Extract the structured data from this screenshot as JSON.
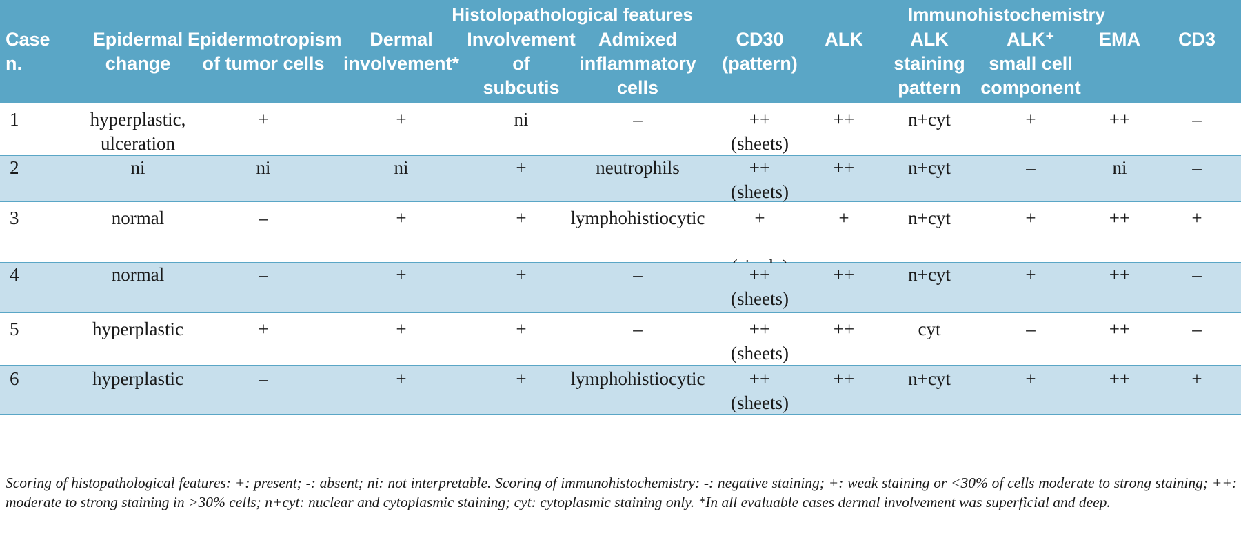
{
  "table": {
    "group_headers": {
      "histopathology": "Histolopathological features",
      "immunohistochemistry": "Immunohistochemistry"
    },
    "columns": [
      "Case\nn.",
      "Epidermal\nchange",
      "Epidermotropism\nof tumor cells",
      "Dermal\ninvolvement*",
      "Involvement of\nsubcutis",
      "Admixed\ninflammatory\ncells",
      "CD30\n(pattern)",
      "ALK",
      "ALK\nstaining\npattern",
      "ALK⁺\nsmall cell\ncomponent",
      "EMA",
      "CD3"
    ],
    "rows": [
      [
        "1",
        "hyperplastic,\nulceration",
        "+",
        "+",
        "ni",
        "–",
        "++\n(sheets)",
        "++",
        "n+cyt",
        "+",
        "++",
        "–"
      ],
      [
        "2",
        "ni",
        "ni",
        "ni",
        "+",
        "neutrophils",
        "++\n(sheets)",
        "++",
        "n+cyt",
        "–",
        "ni",
        "–"
      ],
      [
        "3",
        "normal",
        "–",
        "+",
        "+",
        "lymphohistiocytic",
        "+\n\n(single)",
        "+",
        "n+cyt",
        "+",
        "++",
        "+"
      ],
      [
        "4",
        "normal",
        "–",
        "+",
        "+",
        "–",
        "++\n(sheets)",
        "++",
        "n+cyt",
        "+",
        "++",
        "–"
      ],
      [
        "5",
        "hyperplastic",
        "+",
        "+",
        "+",
        "–",
        "++\n(sheets)",
        "++",
        "cyt",
        "–",
        "++",
        "–"
      ],
      [
        "6",
        "hyperplastic",
        "–",
        "+",
        "+",
        "lymphohistiocytic",
        "++\n(sheets)",
        "++",
        "n+cyt",
        "+",
        "++",
        "+"
      ]
    ],
    "footnote": "Scoring of histopathological features: +: present; -: absent; ni: not interpretable. Scoring of immunohistochemistry: -: negative staining; +: weak staining or <30% of cells moderate to strong staining; ++: moderate to strong staining in >30% cells; n+cyt: nuclear and cytoplasmic staining; cyt: cytoplasmic staining only. *In all evaluable cases dermal involvement was superficial and deep."
  },
  "colors": {
    "header_bg": "#5aa6c6",
    "alt_row_bg": "#c7dfec",
    "rule": "#5aa6c6"
  }
}
